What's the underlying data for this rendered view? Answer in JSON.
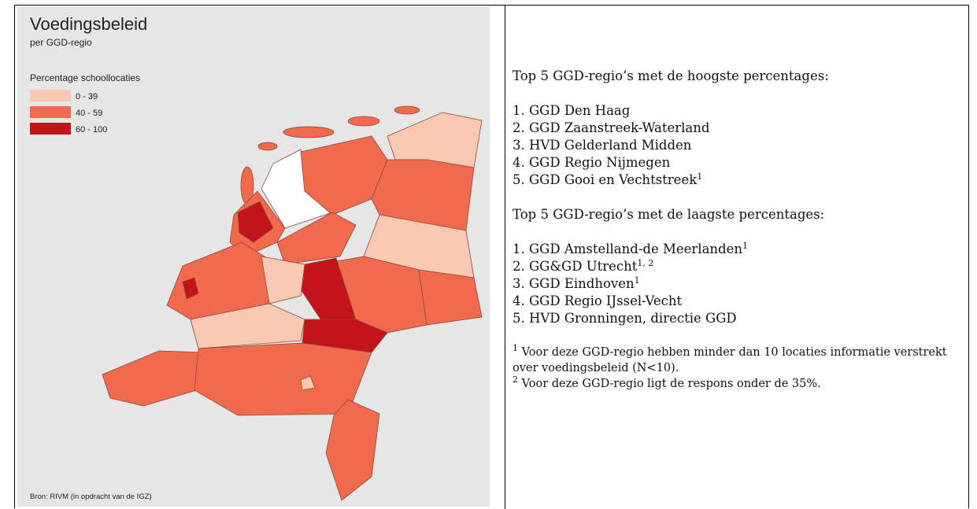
{
  "map": {
    "title": "Voedingsbeleid",
    "subtitle": "per GGD-regio",
    "legend": {
      "title": "Percentage schoollocaties",
      "items": [
        {
          "label": "0 - 39",
          "color": "#f8c8b2"
        },
        {
          "label": "40 - 59",
          "color": "#f26a4d"
        },
        {
          "label": "60 - 100",
          "color": "#c4141b"
        }
      ]
    },
    "source": "Bron: RIVM (in opdracht van de IGZ)"
  },
  "text": {
    "highest": {
      "heading": "Top 5 GGD-regio’s met de hoogste percentages:",
      "items": [
        {
          "text": "1. GGD Den Haag"
        },
        {
          "text": "2. GGD Zaanstreek-Waterland"
        },
        {
          "text": "3. HVD Gelderland Midden"
        },
        {
          "text": "4. GGD Regio Nijmegen"
        },
        {
          "text": "5. GGD Gooi en Vechtstreek",
          "sup": "1"
        }
      ]
    },
    "lowest": {
      "heading": "Top 5 GGD-regio’s met de laagste percentages:",
      "items": [
        {
          "text": "1. GGD Amstelland-de Meerlanden",
          "sup": "1"
        },
        {
          "text": "2. GG&GD Utrecht",
          "sup": "1, 2"
        },
        {
          "text": "3. GGD Eindhoven",
          "sup": "1"
        },
        {
          "text": "4. GGD Regio IJssel-Vecht"
        },
        {
          "text": "5.  HVD Gronningen, directie GGD"
        }
      ]
    },
    "footnotes": [
      {
        "mark": "1",
        "text": "Voor deze GGD-regio hebben minder dan 10 locaties informatie verstrekt over voedingsbeleid (N<10)."
      },
      {
        "mark": "2",
        "text": "Voor deze GGD-regio ligt de respons onder de 35%."
      }
    ]
  }
}
